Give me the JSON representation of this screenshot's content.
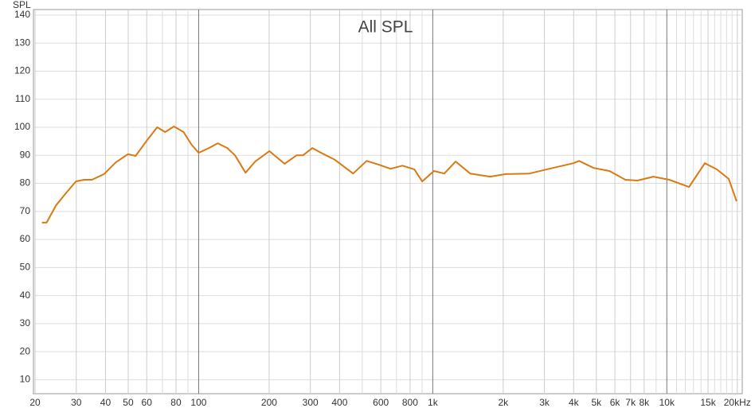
{
  "chart_data": {
    "type": "line",
    "title": "All SPL",
    "y_label": "SPL",
    "x_log": true,
    "grid": true,
    "xlim": [
      20,
      21000
    ],
    "ylim": [
      5,
      140
    ],
    "yticks": [
      10,
      20,
      30,
      40,
      50,
      60,
      70,
      80,
      90,
      100,
      110,
      120,
      130,
      140
    ],
    "xticks": [
      20,
      30,
      40,
      50,
      60,
      80,
      100,
      200,
      300,
      400,
      600,
      800,
      {
        "value": 1000,
        "label": "1k"
      },
      {
        "value": 2000,
        "label": "2k"
      },
      {
        "value": 3000,
        "label": "3k"
      },
      {
        "value": 4000,
        "label": "4k"
      },
      {
        "value": 5000,
        "label": "5k"
      },
      {
        "value": 6000,
        "label": "6k"
      },
      {
        "value": 7000,
        "label": "7k"
      },
      {
        "value": 8000,
        "label": "8k"
      },
      {
        "value": 10000,
        "label": "10k"
      },
      {
        "value": 15000,
        "label": "15k"
      },
      {
        "value": 20000,
        "label": "20kHz"
      }
    ],
    "xminor": [
      70,
      90,
      500,
      700,
      900,
      9000,
      11000,
      12000,
      13000,
      14000,
      16000,
      17000,
      18000,
      19000
    ],
    "series": [
      {
        "name": "SPL",
        "color": "#d97a12",
        "x": [
          21.4,
          22.4,
          24.6,
          27.1,
          29.9,
          32.4,
          35,
          39.4,
          44.3,
          49.8,
          53.8,
          60.6,
          66.5,
          71.9,
          78.4,
          86.2,
          93.2,
          100,
          110.7,
          120.6,
          132.5,
          143,
          158.6,
          174.3,
          200.6,
          232.8,
          262,
          279,
          306,
          339,
          382,
          457,
          522,
          587,
          660,
          742,
          835,
          901,
          1012,
          1120,
          1253,
          1445,
          1758,
          2050,
          2590,
          3150,
          3990,
          4219,
          4870,
          5690,
          6650,
          7490,
          8760,
          10240,
          12440,
          14530,
          16340,
          18380,
          19870
        ],
        "values": [
          66,
          66,
          72.2,
          76.5,
          80.7,
          81.3,
          81.3,
          83.3,
          87.5,
          90.4,
          89.8,
          95.7,
          100,
          98.3,
          100.3,
          98.3,
          93.8,
          90.9,
          92.6,
          94.3,
          92.6,
          90,
          83.8,
          87.8,
          91.5,
          87,
          90,
          90,
          92.6,
          90.6,
          88.4,
          83.5,
          88,
          86.7,
          85.2,
          86.3,
          85,
          80.7,
          84.4,
          83.5,
          87.8,
          83.5,
          82.4,
          83.3,
          83.5,
          85.2,
          87.2,
          88,
          85.5,
          84.4,
          81.3,
          81,
          82.4,
          81.3,
          78.7,
          87.2,
          85,
          81.6,
          73.6
        ]
      }
    ]
  }
}
